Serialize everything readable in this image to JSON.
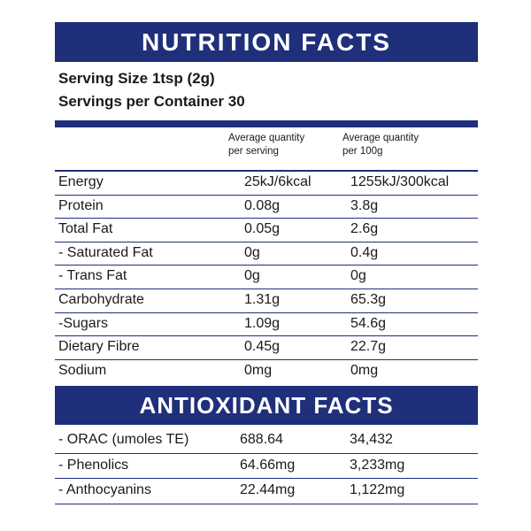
{
  "title": "NUTRITION FACTS",
  "serving_size": "Serving Size 1tsp (2g)",
  "servings_per_container": "Servings per Container 30",
  "columns": {
    "per_serving": "Average quantity per serving",
    "per_100g": "Average quantity per 100g"
  },
  "nutrients": [
    {
      "name": "Energy",
      "per_serving": "25kJ/6kcal",
      "per_100g": "1255kJ/300kcal"
    },
    {
      "name": "Protein",
      "per_serving": "0.08g",
      "per_100g": "3.8g"
    },
    {
      "name": "Total Fat",
      "per_serving": "0.05g",
      "per_100g": "2.6g"
    },
    {
      "name": " - Saturated Fat",
      "per_serving": "0g",
      "per_100g": "0.4g"
    },
    {
      "name": " - Trans Fat",
      "per_serving": "0g",
      "per_100g": "0g"
    },
    {
      "name": "Carbohydrate",
      "per_serving": "1.31g",
      "per_100g": "65.3g"
    },
    {
      "name": " -Sugars",
      "per_serving": "1.09g",
      "per_100g": "54.6g"
    },
    {
      "name": "Dietary Fibre",
      "per_serving": "0.45g",
      "per_100g": "22.7g"
    },
    {
      "name": "Sodium",
      "per_serving": "0mg",
      "per_100g": "0mg"
    }
  ],
  "antioxidant_title": "ANTIOXIDANT FACTS",
  "antioxidants": [
    {
      "name": " - ORAC (umoles TE)",
      "per_serving": "688.64",
      "per_100g": "34,432"
    },
    {
      "name": " - Phenolics",
      "per_serving": "64.66mg",
      "per_100g": "3,233mg"
    },
    {
      "name": " - Anthocyanins",
      "per_serving": "22.44mg",
      "per_100g": "1,122mg"
    }
  ],
  "colors": {
    "banner": "#1f2f7a",
    "text": "#1a1a1a"
  }
}
